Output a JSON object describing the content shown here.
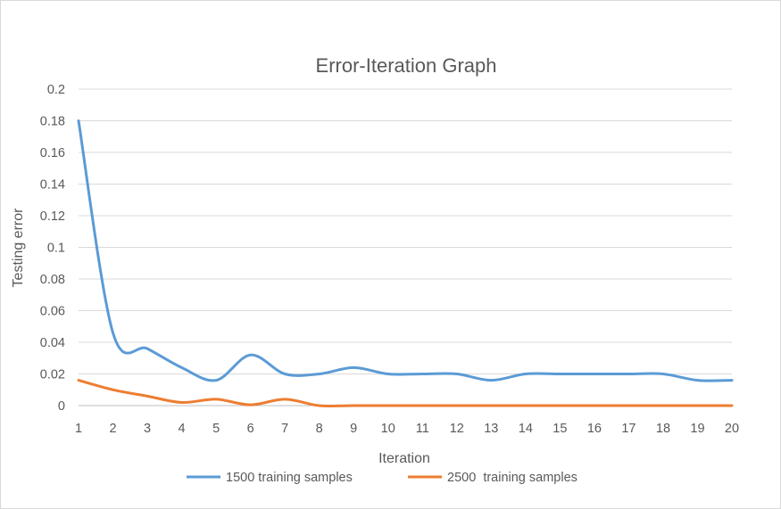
{
  "chart_data": {
    "type": "line",
    "title": "Error-Iteration Graph",
    "xlabel": "Iteration",
    "ylabel": "Testing error",
    "x": [
      1,
      2,
      3,
      4,
      5,
      6,
      7,
      8,
      9,
      10,
      11,
      12,
      13,
      14,
      15,
      16,
      17,
      18,
      19,
      20
    ],
    "ylim": [
      0,
      0.2
    ],
    "y_ticks": [
      "0",
      "0.02",
      "0.04",
      "0.06",
      "0.08",
      "0.1",
      "0.12",
      "0.14",
      "0.16",
      "0.18",
      "0.2"
    ],
    "y_tick_values": [
      0,
      0.02,
      0.04,
      0.06,
      0.08,
      0.1,
      0.12,
      0.14,
      0.16,
      0.18,
      0.2
    ],
    "grid": true,
    "legend_position": "bottom",
    "smooth": true,
    "series": [
      {
        "name": "1500 training samples",
        "color": "#5b9bd5",
        "values": [
          0.18,
          0.046,
          0.036,
          0.024,
          0.016,
          0.032,
          0.02,
          0.02,
          0.024,
          0.02,
          0.02,
          0.02,
          0.016,
          0.02,
          0.02,
          0.02,
          0.02,
          0.02,
          0.016,
          0.016
        ]
      },
      {
        "name": "2500  training samples",
        "color": "#ed7d31",
        "values": [
          0.016,
          0.01,
          0.006,
          0.002,
          0.004,
          0.0005,
          0.004,
          0,
          0,
          0,
          0,
          0,
          0,
          0,
          0,
          0,
          0,
          0,
          0,
          0
        ]
      }
    ]
  }
}
